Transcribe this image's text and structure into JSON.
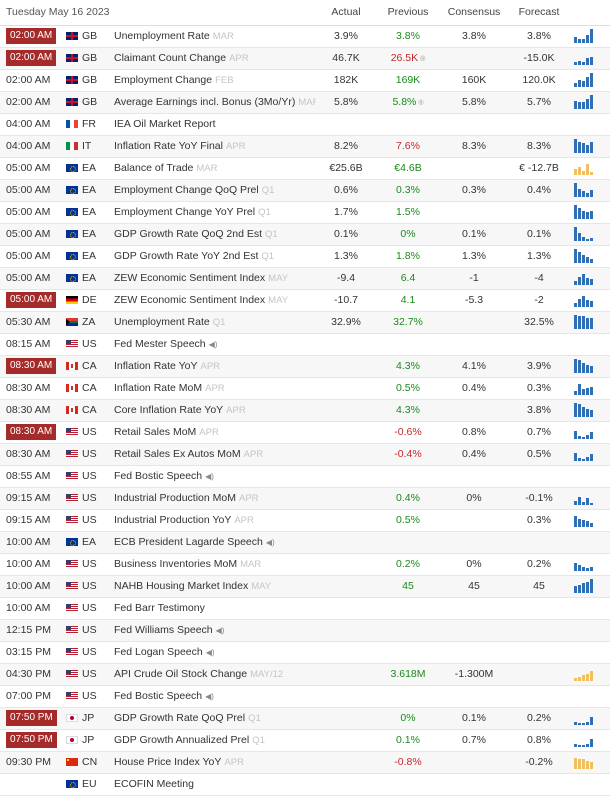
{
  "header": {
    "date": "Tuesday May 16 2023",
    "actual": "Actual",
    "previous": "Previous",
    "consensus": "Consensus",
    "forecast": "Forecast"
  },
  "colors": {
    "badge": "#a52a2a",
    "green": "#1a8a1a",
    "red": "#c62828",
    "bar_blue": "#2f6fb7",
    "bar_gold": "#f0c060"
  },
  "rows": [
    {
      "time": "02:00 AM",
      "badge": true,
      "flag": "gb",
      "cc": "GB",
      "event": "Unemployment Rate",
      "ref": "MAR",
      "actual": "3.9%",
      "previous": "3.8%",
      "prev_color": "green",
      "prev_rev": false,
      "consensus": "3.8%",
      "forecast": "3.8%",
      "chart": "blue",
      "bars": [
        0.4,
        0.3,
        0.3,
        0.6,
        1
      ]
    },
    {
      "time": "02:00 AM",
      "badge": true,
      "flag": "gb",
      "cc": "GB",
      "event": "Claimant Count Change",
      "ref": "APR",
      "actual": "46.7K",
      "previous": "26.5K",
      "prev_color": "red",
      "prev_rev": true,
      "consensus": "",
      "forecast": "-15.0K",
      "chart": "blue",
      "bars": [
        0.2,
        0.3,
        0.2,
        0.5,
        0.6
      ]
    },
    {
      "time": "02:00 AM",
      "badge": false,
      "flag": "gb",
      "cc": "GB",
      "event": "Employment Change",
      "ref": "FEB",
      "actual": "182K",
      "previous": "169K",
      "prev_color": "green",
      "prev_rev": false,
      "consensus": "160K",
      "forecast": "120.0K",
      "chart": "blue",
      "bars": [
        0.3,
        0.5,
        0.4,
        0.7,
        1
      ]
    },
    {
      "time": "02:00 AM",
      "badge": false,
      "flag": "gb",
      "cc": "GB",
      "event": "Average Earnings incl. Bonus (3Mo/Yr)",
      "ref": "MAR",
      "actual": "5.8%",
      "previous": "5.8%",
      "prev_color": "green",
      "prev_rev": true,
      "consensus": "5.8%",
      "forecast": "5.7%",
      "chart": "blue",
      "bars": [
        0.6,
        0.5,
        0.5,
        0.7,
        1
      ]
    },
    {
      "time": "04:00 AM",
      "badge": false,
      "flag": "fr",
      "cc": "FR",
      "event": "IEA Oil Market Report",
      "ref": "",
      "actual": "",
      "previous": "",
      "prev_color": "",
      "prev_rev": false,
      "consensus": "",
      "forecast": "",
      "chart": "none",
      "bars": []
    },
    {
      "time": "04:00 AM",
      "badge": false,
      "flag": "it",
      "cc": "IT",
      "event": "Inflation Rate YoY Final",
      "ref": "APR",
      "actual": "8.2%",
      "previous": "7.6%",
      "prev_color": "red",
      "prev_rev": false,
      "consensus": "8.3%",
      "forecast": "8.3%",
      "chart": "blue",
      "bars": [
        1,
        0.8,
        0.7,
        0.6,
        0.8
      ]
    },
    {
      "time": "05:00 AM",
      "badge": false,
      "flag": "eu",
      "cc": "EA",
      "event": "Balance of Trade",
      "ref": "MAR",
      "actual": "€25.6B",
      "previous": "€4.6B",
      "prev_color": "green",
      "prev_rev": false,
      "consensus": "",
      "forecast": "€ -12.7B",
      "chart": "gold",
      "bars": [
        0.4,
        0.6,
        0.3,
        0.8,
        0.2
      ]
    },
    {
      "time": "05:00 AM",
      "badge": false,
      "flag": "eu",
      "cc": "EA",
      "event": "Employment Change QoQ Prel",
      "ref": "Q1",
      "actual": "0.6%",
      "previous": "0.3%",
      "prev_color": "green",
      "prev_rev": false,
      "consensus": "0.3%",
      "forecast": "0.4%",
      "chart": "blue",
      "bars": [
        1,
        0.6,
        0.4,
        0.3,
        0.5
      ]
    },
    {
      "time": "05:00 AM",
      "badge": false,
      "flag": "eu",
      "cc": "EA",
      "event": "Employment Change YoY Prel",
      "ref": "Q1",
      "actual": "1.7%",
      "previous": "1.5%",
      "prev_color": "green",
      "prev_rev": false,
      "consensus": "",
      "forecast": "",
      "chart": "blue",
      "bars": [
        1,
        0.8,
        0.6,
        0.5,
        0.6
      ]
    },
    {
      "time": "05:00 AM",
      "badge": false,
      "flag": "eu",
      "cc": "EA",
      "event": "GDP Growth Rate QoQ 2nd Est",
      "ref": "Q1",
      "actual": "0.1%",
      "previous": "0%",
      "prev_color": "green",
      "prev_rev": false,
      "consensus": "0.1%",
      "forecast": "0.1%",
      "chart": "blue",
      "bars": [
        1,
        0.6,
        0.3,
        0.1,
        0.2
      ]
    },
    {
      "time": "05:00 AM",
      "badge": false,
      "flag": "eu",
      "cc": "EA",
      "event": "GDP Growth Rate YoY 2nd Est",
      "ref": "Q1",
      "actual": "1.3%",
      "previous": "1.8%",
      "prev_color": "green",
      "prev_rev": false,
      "consensus": "1.3%",
      "forecast": "1.3%",
      "chart": "blue",
      "bars": [
        1,
        0.8,
        0.6,
        0.4,
        0.3
      ]
    },
    {
      "time": "05:00 AM",
      "badge": false,
      "flag": "eu",
      "cc": "EA",
      "event": "ZEW Economic Sentiment Index",
      "ref": "MAY",
      "actual": "-9.4",
      "previous": "6.4",
      "prev_color": "green",
      "prev_rev": false,
      "consensus": "-1",
      "forecast": "-4",
      "chart": "blue",
      "bars": [
        0.3,
        0.6,
        0.8,
        0.5,
        0.4
      ]
    },
    {
      "time": "05:00 AM",
      "badge": true,
      "flag": "de",
      "cc": "DE",
      "event": "ZEW Economic Sentiment Index",
      "ref": "MAY",
      "actual": "-10.7",
      "previous": "4.1",
      "prev_color": "green",
      "prev_rev": false,
      "consensus": "-5.3",
      "forecast": "-2",
      "chart": "blue",
      "bars": [
        0.3,
        0.6,
        0.8,
        0.5,
        0.4
      ]
    },
    {
      "time": "05:30 AM",
      "badge": false,
      "flag": "za",
      "cc": "ZA",
      "event": "Unemployment Rate",
      "ref": "Q1",
      "actual": "32.9%",
      "previous": "32.7%",
      "prev_color": "green",
      "prev_rev": false,
      "consensus": "",
      "forecast": "32.5%",
      "chart": "blue",
      "bars": [
        1,
        0.9,
        0.9,
        0.8,
        0.8
      ]
    },
    {
      "time": "08:15 AM",
      "badge": false,
      "flag": "us",
      "cc": "US",
      "event": "Fed Mester Speech",
      "ref": "",
      "speech": true,
      "actual": "",
      "previous": "",
      "prev_color": "",
      "prev_rev": false,
      "consensus": "",
      "forecast": "",
      "chart": "none",
      "bars": []
    },
    {
      "time": "08:30 AM",
      "badge": true,
      "flag": "ca",
      "cc": "CA",
      "event": "Inflation Rate YoY",
      "ref": "APR",
      "actual": "",
      "previous": "4.3%",
      "prev_color": "green",
      "prev_rev": false,
      "consensus": "4.1%",
      "forecast": "3.9%",
      "chart": "blue",
      "bars": [
        1,
        0.9,
        0.7,
        0.6,
        0.5
      ]
    },
    {
      "time": "08:30 AM",
      "badge": false,
      "flag": "ca",
      "cc": "CA",
      "event": "Inflation Rate MoM",
      "ref": "APR",
      "actual": "",
      "previous": "0.5%",
      "prev_color": "green",
      "prev_rev": false,
      "consensus": "0.4%",
      "forecast": "0.3%",
      "chart": "blue",
      "bars": [
        0.3,
        0.8,
        0.4,
        0.5,
        0.6
      ]
    },
    {
      "time": "08:30 AM",
      "badge": false,
      "flag": "ca",
      "cc": "CA",
      "event": "Core Inflation Rate YoY",
      "ref": "APR",
      "actual": "",
      "previous": "4.3%",
      "prev_color": "green",
      "prev_rev": false,
      "consensus": "",
      "forecast": "3.8%",
      "chart": "blue",
      "bars": [
        1,
        0.9,
        0.7,
        0.6,
        0.5
      ]
    },
    {
      "time": "08:30 AM",
      "badge": true,
      "flag": "us",
      "cc": "US",
      "event": "Retail Sales MoM",
      "ref": "APR",
      "actual": "",
      "previous": "-0.6%",
      "prev_color": "red",
      "prev_rev": false,
      "consensus": "0.8%",
      "forecast": "0.7%",
      "chart": "blue",
      "bars": [
        0.6,
        0.2,
        0.1,
        0.3,
        0.5
      ]
    },
    {
      "time": "08:30 AM",
      "badge": false,
      "flag": "us",
      "cc": "US",
      "event": "Retail Sales Ex Autos MoM",
      "ref": "APR",
      "actual": "",
      "previous": "-0.4%",
      "prev_color": "red",
      "prev_rev": false,
      "consensus": "0.4%",
      "forecast": "0.5%",
      "chart": "blue",
      "bars": [
        0.6,
        0.2,
        0.1,
        0.3,
        0.5
      ]
    },
    {
      "time": "08:55 AM",
      "badge": false,
      "flag": "us",
      "cc": "US",
      "event": "Fed Bostic Speech",
      "ref": "",
      "speech": true,
      "actual": "",
      "previous": "",
      "prev_color": "",
      "prev_rev": false,
      "consensus": "",
      "forecast": "",
      "chart": "none",
      "bars": []
    },
    {
      "time": "09:15 AM",
      "badge": false,
      "flag": "us",
      "cc": "US",
      "event": "Industrial Production MoM",
      "ref": "APR",
      "actual": "",
      "previous": "0.4%",
      "prev_color": "green",
      "prev_rev": false,
      "consensus": "0%",
      "forecast": "-0.1%",
      "chart": "blue",
      "bars": [
        0.3,
        0.6,
        0.2,
        0.5,
        0.1
      ]
    },
    {
      "time": "09:15 AM",
      "badge": false,
      "flag": "us",
      "cc": "US",
      "event": "Industrial Production YoY",
      "ref": "APR",
      "actual": "",
      "previous": "0.5%",
      "prev_color": "green",
      "prev_rev": false,
      "consensus": "",
      "forecast": "0.3%",
      "chart": "blue",
      "bars": [
        0.8,
        0.6,
        0.5,
        0.4,
        0.3
      ]
    },
    {
      "time": "10:00 AM",
      "badge": false,
      "flag": "eu",
      "cc": "EA",
      "event": "ECB President Lagarde Speech",
      "ref": "",
      "speech": true,
      "actual": "",
      "previous": "",
      "prev_color": "",
      "prev_rev": false,
      "consensus": "",
      "forecast": "",
      "chart": "none",
      "bars": []
    },
    {
      "time": "10:00 AM",
      "badge": false,
      "flag": "us",
      "cc": "US",
      "event": "Business Inventories MoM",
      "ref": "MAR",
      "actual": "",
      "previous": "0.2%",
      "prev_color": "green",
      "prev_rev": false,
      "consensus": "0%",
      "forecast": "0.2%",
      "chart": "blue",
      "bars": [
        0.6,
        0.4,
        0.3,
        0.2,
        0.3
      ]
    },
    {
      "time": "10:00 AM",
      "badge": false,
      "flag": "us",
      "cc": "US",
      "event": "NAHB Housing Market Index",
      "ref": "MAY",
      "actual": "",
      "previous": "45",
      "prev_color": "green",
      "prev_rev": false,
      "consensus": "45",
      "forecast": "45",
      "chart": "blue",
      "bars": [
        0.5,
        0.6,
        0.7,
        0.8,
        1
      ]
    },
    {
      "time": "10:00 AM",
      "badge": false,
      "flag": "us",
      "cc": "US",
      "event": "Fed Barr Testimony",
      "ref": "",
      "speech": false,
      "actual": "",
      "previous": "",
      "prev_color": "",
      "prev_rev": false,
      "consensus": "",
      "forecast": "",
      "chart": "none",
      "bars": []
    },
    {
      "time": "12:15 PM",
      "badge": false,
      "flag": "us",
      "cc": "US",
      "event": "Fed Williams Speech",
      "ref": "",
      "speech": true,
      "actual": "",
      "previous": "",
      "prev_color": "",
      "prev_rev": false,
      "consensus": "",
      "forecast": "",
      "chart": "none",
      "bars": []
    },
    {
      "time": "03:15 PM",
      "badge": false,
      "flag": "us",
      "cc": "US",
      "event": "Fed Logan Speech",
      "ref": "",
      "speech": true,
      "actual": "",
      "previous": "",
      "prev_color": "",
      "prev_rev": false,
      "consensus": "",
      "forecast": "",
      "chart": "none",
      "bars": []
    },
    {
      "time": "04:30 PM",
      "badge": false,
      "flag": "us",
      "cc": "US",
      "event": "API Crude Oil Stock Change",
      "ref": "MAY/12",
      "actual": "",
      "previous": "3.618M",
      "prev_color": "green",
      "prev_rev": false,
      "consensus": "-1.300M",
      "forecast": "",
      "chart": "gold",
      "bars": [
        0.2,
        0.3,
        0.4,
        0.5,
        0.7
      ]
    },
    {
      "time": "07:00 PM",
      "badge": false,
      "flag": "us",
      "cc": "US",
      "event": "Fed Bostic Speech",
      "ref": "",
      "speech": true,
      "actual": "",
      "previous": "",
      "prev_color": "",
      "prev_rev": false,
      "consensus": "",
      "forecast": "",
      "chart": "none",
      "bars": []
    },
    {
      "time": "07:50 PM",
      "badge": true,
      "flag": "jp",
      "cc": "JP",
      "event": "GDP Growth Rate QoQ Prel",
      "ref": "Q1",
      "actual": "",
      "previous": "0%",
      "prev_color": "green",
      "prev_rev": false,
      "consensus": "0.1%",
      "forecast": "0.2%",
      "chart": "blue",
      "bars": [
        0.2,
        0.1,
        0.1,
        0.2,
        0.6
      ]
    },
    {
      "time": "07:50 PM",
      "badge": true,
      "flag": "jp",
      "cc": "JP",
      "event": "GDP Growth Annualized Prel",
      "ref": "Q1",
      "actual": "",
      "previous": "0.1%",
      "prev_color": "green",
      "prev_rev": false,
      "consensus": "0.7%",
      "forecast": "0.8%",
      "chart": "blue",
      "bars": [
        0.2,
        0.1,
        0.1,
        0.2,
        0.6
      ]
    },
    {
      "time": "09:30 PM",
      "badge": false,
      "flag": "cn",
      "cc": "CN",
      "event": "House Price Index YoY",
      "ref": "APR",
      "actual": "",
      "previous": "-0.8%",
      "prev_color": "red",
      "prev_rev": false,
      "consensus": "",
      "forecast": "-0.2%",
      "chart": "gold",
      "bars": [
        0.8,
        0.7,
        0.7,
        0.6,
        0.5
      ]
    },
    {
      "time": "",
      "badge": false,
      "flag": "eu",
      "cc": "EU",
      "event": "ECOFIN Meeting",
      "ref": "",
      "speech": false,
      "actual": "",
      "previous": "",
      "prev_color": "",
      "prev_rev": false,
      "consensus": "",
      "forecast": "",
      "chart": "none",
      "bars": []
    }
  ]
}
